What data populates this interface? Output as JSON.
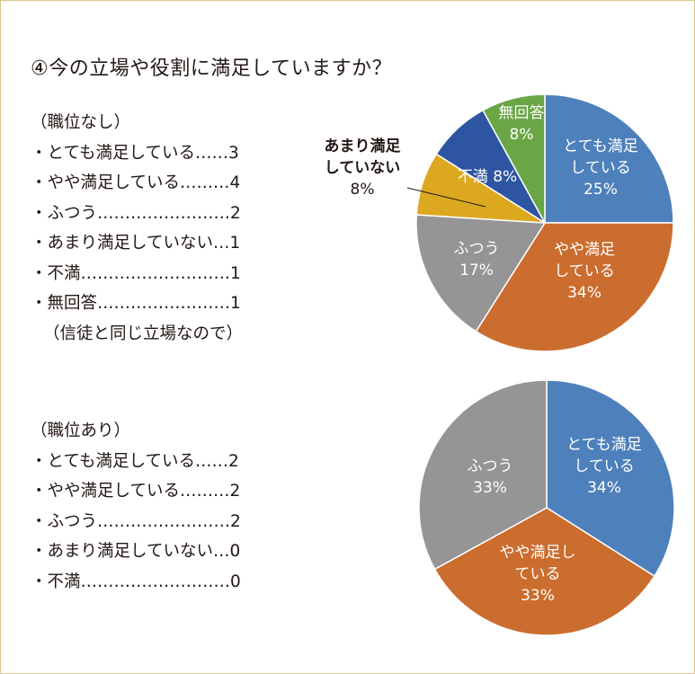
{
  "title": "④今の立場や役割に満足していますか？",
  "groups": [
    {
      "heading": "（職位なし）",
      "lines": [
        "・とても満足している……3",
        "・やや満足している………4",
        "・ふつう……………………2",
        "・あまり満足していない…1",
        "・不満………………………1",
        "・無回答……………………1"
      ],
      "note": "（信徒と同じ立場なので）"
    },
    {
      "heading": "（職位あり）",
      "lines": [
        "・とても満足している……2",
        "・やや満足している………2",
        "・ふつう……………………2",
        "・あまり満足していない…0",
        "・不満………………………0"
      ]
    }
  ],
  "chart_data": [
    {
      "type": "pie",
      "slices": [
        {
          "label": "とても満足している",
          "label_lines": [
            "とても満足",
            "している",
            "25%"
          ],
          "value": 25,
          "color": "#4e80bb",
          "label_color": "#ffffff"
        },
        {
          "label": "やや満足している",
          "label_lines": [
            "やや満足",
            "している",
            "34%"
          ],
          "value": 34,
          "color": "#cb6d2f",
          "label_color": "#ffffff"
        },
        {
          "label": "ふつう",
          "label_lines": [
            "ふつう",
            "17%"
          ],
          "value": 17,
          "color": "#959595",
          "label_color": "#ffffff"
        },
        {
          "label": "あまり満足していない",
          "label_lines": [
            "あまり満足",
            "していない",
            "8%"
          ],
          "value": 8,
          "color": "#dba81f",
          "label_color": "#231815"
        },
        {
          "label": "不満",
          "label_lines": [
            "不満 8%"
          ],
          "value": 8,
          "color": "#2e55a1",
          "label_color": "#ffffff"
        },
        {
          "label": "無回答",
          "label_lines": [
            "無回答",
            "8%"
          ],
          "value": 8,
          "color": "#6aa645",
          "label_color": "#ffffff"
        }
      ]
    },
    {
      "type": "pie",
      "slices": [
        {
          "label": "とても満足している",
          "label_lines": [
            "とても満足",
            "している",
            "34%"
          ],
          "value": 34,
          "color": "#4e80bb",
          "label_color": "#ffffff"
        },
        {
          "label": "やや満足している",
          "label_lines": [
            "やや満足し",
            "ている",
            "33%"
          ],
          "value": 33,
          "color": "#cb6d2f",
          "label_color": "#ffffff"
        },
        {
          "label": "ふつう",
          "label_lines": [
            "ふつう",
            "33%"
          ],
          "value": 33,
          "color": "#959595",
          "label_color": "#ffffff"
        }
      ]
    }
  ]
}
